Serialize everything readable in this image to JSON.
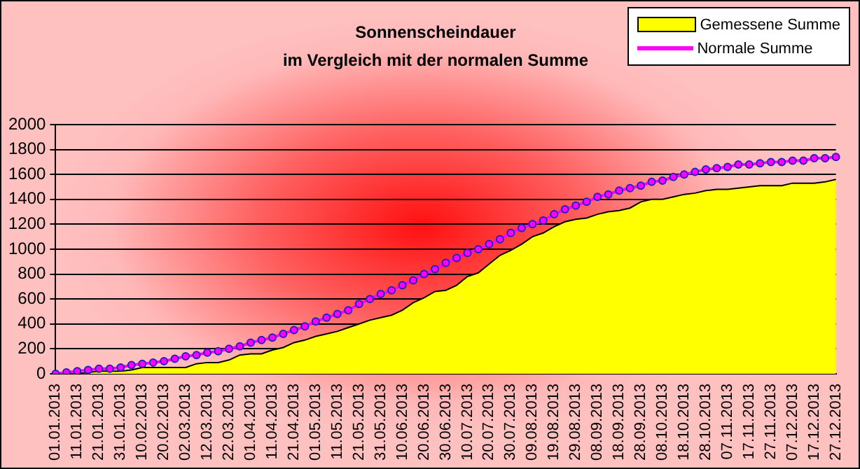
{
  "chart_data": {
    "type": "line",
    "title": "Sonnenscheindauer\nim Vergleich mit der normalen Summe",
    "categories": [
      "01.01.2013",
      null,
      "11.01.2013",
      null,
      "21.01.2013",
      null,
      "31.01.2013",
      null,
      "10.02.2013",
      null,
      "20.02.2013",
      null,
      "02.03.2013",
      null,
      "12.03.2013",
      null,
      "22.03.2013",
      null,
      "01.04.2013",
      null,
      "11.04.2013",
      null,
      "21.04.2013",
      null,
      "01.05.2013",
      null,
      "11.05.2013",
      null,
      "21.05.2013",
      null,
      "31.05.2013",
      null,
      "10.06.2013",
      null,
      "20.06.2013",
      null,
      "30.06.2013",
      null,
      "10.07.2013",
      null,
      "20.07.2013",
      null,
      "30.07.2013",
      null,
      "09.08.2013",
      null,
      "19.08.2013",
      null,
      "29.08.2013",
      null,
      "08.09.2013",
      null,
      "18.09.2013",
      null,
      "28.09.2013",
      null,
      "08.10.2013",
      null,
      "18.10.2013",
      null,
      "28.10.2013",
      null,
      "07.11.2013",
      null,
      "17.11.2013",
      null,
      "27.11.2013",
      null,
      "07.12.2013",
      null,
      "17.12.2013",
      null,
      "27.12.2013"
    ],
    "series": [
      {
        "name": "Gemessene Summe",
        "type": "area",
        "color": "#ffff00",
        "values": [
          0,
          0,
          0,
          10,
          20,
          20,
          20,
          30,
          50,
          50,
          50,
          50,
          50,
          80,
          90,
          90,
          110,
          150,
          160,
          160,
          190,
          210,
          250,
          270,
          300,
          320,
          340,
          370,
          400,
          430,
          450,
          470,
          510,
          570,
          610,
          660,
          670,
          710,
          780,
          810,
          880,
          950,
          990,
          1040,
          1100,
          1130,
          1180,
          1220,
          1240,
          1250,
          1280,
          1300,
          1310,
          1330,
          1380,
          1400,
          1400,
          1420,
          1440,
          1450,
          1470,
          1480,
          1480,
          1490,
          1500,
          1510,
          1510,
          1510,
          1530,
          1530,
          1530,
          1540,
          1560
        ]
      },
      {
        "name": "Normale Summe",
        "color": "#ff00ff",
        "marker": "circle",
        "values": [
          0,
          10,
          20,
          30,
          40,
          40,
          50,
          70,
          80,
          90,
          100,
          120,
          140,
          150,
          170,
          180,
          200,
          220,
          250,
          270,
          290,
          320,
          350,
          380,
          420,
          450,
          480,
          510,
          560,
          600,
          640,
          670,
          710,
          750,
          800,
          840,
          890,
          930,
          970,
          1000,
          1040,
          1080,
          1130,
          1170,
          1200,
          1230,
          1280,
          1320,
          1350,
          1380,
          1420,
          1440,
          1470,
          1490,
          1510,
          1540,
          1550,
          1580,
          1600,
          1620,
          1640,
          1650,
          1660,
          1680,
          1680,
          1690,
          1700,
          1700,
          1710,
          1710,
          1730,
          1730,
          1740
        ]
      }
    ],
    "ylim": [
      0,
      2000
    ],
    "yticks": [
      0,
      200,
      400,
      600,
      800,
      1000,
      1200,
      1400,
      1600,
      1800,
      2000
    ],
    "grid": "y",
    "legend": "top right"
  }
}
